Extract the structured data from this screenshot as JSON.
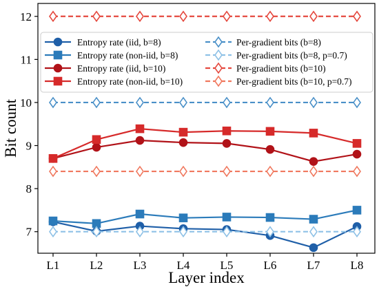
{
  "chart_data": {
    "type": "line",
    "xlabel": "Layer index",
    "ylabel": "Bit count",
    "categories": [
      "L1",
      "L2",
      "L3",
      "L4",
      "L5",
      "L6",
      "L7",
      "L8"
    ],
    "ylim": [
      6.5,
      12.3
    ],
    "yticks": [
      7,
      8,
      9,
      10,
      11,
      12
    ],
    "grid": false,
    "legend_position": "upper",
    "series": [
      {
        "name": "Entropy rate (iid, b=8)",
        "color": "#1f5fa8",
        "marker": "circle",
        "dashed": false,
        "values": [
          7.23,
          7.01,
          7.13,
          7.07,
          7.05,
          6.91,
          6.63,
          7.12
        ]
      },
      {
        "name": "Entropy rate (non-iid, b=8)",
        "color": "#2b7bba",
        "marker": "square",
        "dashed": false,
        "values": [
          7.25,
          7.19,
          7.41,
          7.32,
          7.34,
          7.33,
          7.29,
          7.5
        ]
      },
      {
        "name": "Entropy rate (iid, b=10)",
        "color": "#b11218",
        "marker": "circle",
        "dashed": false,
        "values": [
          8.7,
          8.96,
          9.12,
          9.07,
          9.05,
          8.91,
          8.63,
          8.8
        ]
      },
      {
        "name": "Entropy rate (non-iid, b=10)",
        "color": "#d62a2a",
        "marker": "square",
        "dashed": false,
        "values": [
          8.7,
          9.14,
          9.39,
          9.31,
          9.34,
          9.33,
          9.29,
          9.05
        ]
      },
      {
        "name": "Per-gradient bits (b=8)",
        "color": "#4a90c8",
        "marker": "diamond",
        "dashed": true,
        "values": [
          10,
          10,
          10,
          10,
          10,
          10,
          10,
          10
        ]
      },
      {
        "name": "Per-gradient bits (b=8, p=0.7)",
        "color": "#8ec1e6",
        "marker": "diamond",
        "dashed": true,
        "values": [
          7,
          7,
          7,
          7,
          7,
          7,
          7,
          7
        ]
      },
      {
        "name": "Per-gradient bits (b=10)",
        "color": "#e5493f",
        "marker": "diamond",
        "dashed": true,
        "values": [
          12,
          12,
          12,
          12,
          12,
          12,
          12,
          12
        ]
      },
      {
        "name": "Per-gradient bits (b=10, p=0.7)",
        "color": "#f0785e",
        "marker": "diamond",
        "dashed": true,
        "values": [
          8.4,
          8.4,
          8.4,
          8.4,
          8.4,
          8.4,
          8.4,
          8.4
        ]
      }
    ]
  }
}
